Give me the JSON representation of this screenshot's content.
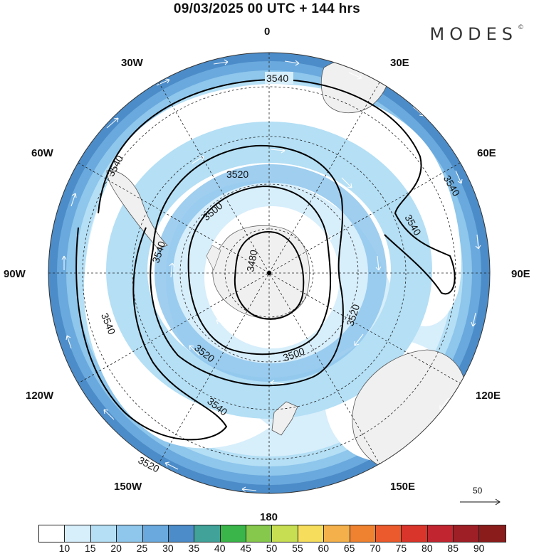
{
  "header": {
    "title": "09/03/2025  00 UTC  + 144 hrs",
    "brand": "MODES",
    "brand_mark": "©"
  },
  "map": {
    "projection": "south-polar-stereographic",
    "longitude_labels": [
      "0",
      "30E",
      "60E",
      "90E",
      "120E",
      "150E",
      "180",
      "150W",
      "120W",
      "90W",
      "60W",
      "30W"
    ],
    "contour_labels": [
      "3540",
      "3540",
      "3540",
      "3540",
      "3540",
      "3540",
      "3540",
      "3520",
      "3520",
      "3520",
      "3520",
      "3500",
      "3500",
      "3480"
    ],
    "reference_vector_label": "50",
    "colors": {
      "land": "#f0f0f0",
      "ocean_background": "#ffffff",
      "contour": "#000000",
      "wind_arrows": "#ffffff"
    }
  },
  "colorbar": {
    "labels": [
      "10",
      "15",
      "20",
      "25",
      "30",
      "35",
      "40",
      "45",
      "50",
      "55",
      "60",
      "65",
      "70",
      "75",
      "80",
      "85",
      "90"
    ],
    "colors": [
      "#ffffff",
      "#d7eefb",
      "#b4dff5",
      "#8ec6ec",
      "#6aa9dd",
      "#4c8cc8",
      "#41a29a",
      "#3ab54a",
      "#86c84c",
      "#c7dd52",
      "#f6de5c",
      "#f4b04a",
      "#ef8231",
      "#ea5a2d",
      "#d9352b",
      "#c12630",
      "#9e1f26",
      "#8b1c1c"
    ]
  }
}
